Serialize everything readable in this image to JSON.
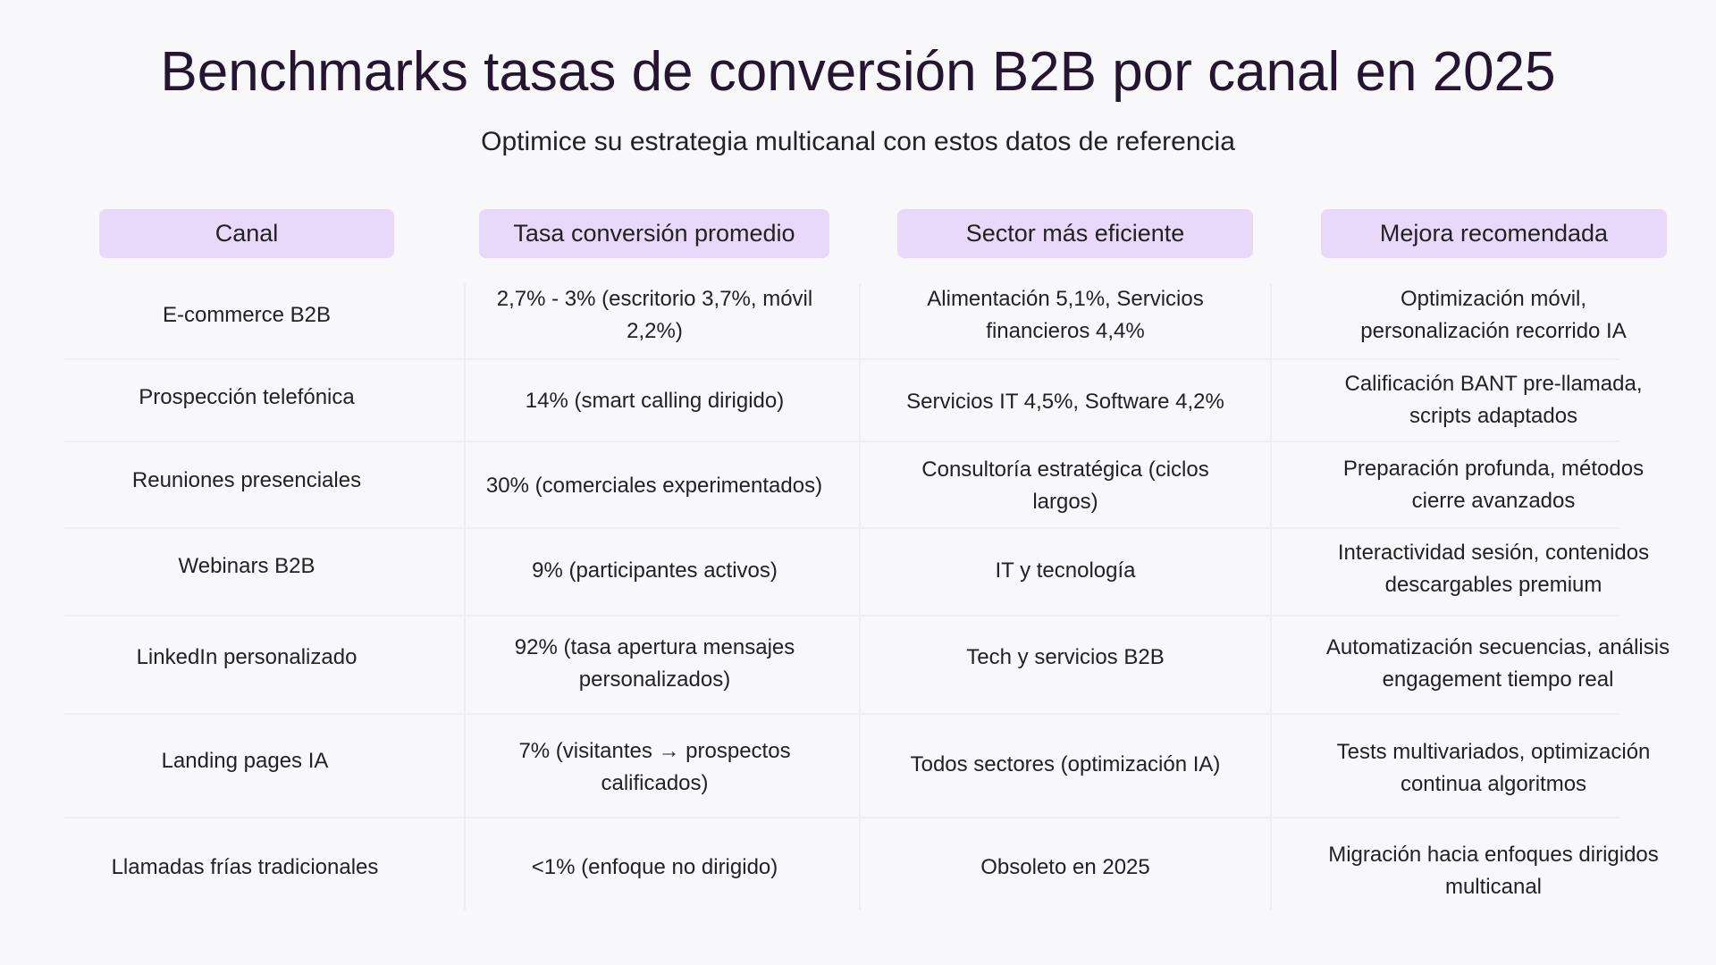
{
  "title": "Benchmarks tasas de conversión B2B por canal en 2025",
  "subtitle": "Optimice su estrategia multicanal con estos datos de referencia",
  "table": {
    "headers": [
      "Canal",
      "Tasa conversión promedio",
      "Sector más eficiente",
      "Mejora recomendada"
    ],
    "rows": [
      [
        "E-commerce B2B",
        "2,7% - 3% (escritorio 3,7%, móvil 2,2%)",
        "Alimentación 5,1%, Servicios financieros 4,4%",
        "Optimización móvil, personalización recorrido IA"
      ],
      [
        "Prospección telefónica",
        "14% (smart calling dirigido)",
        "Servicios IT 4,5%, Software 4,2%",
        "Calificación BANT pre-llamada, scripts adaptados"
      ],
      [
        "Reuniones presenciales",
        "30% (comerciales experimentados)",
        "Consultoría estratégica (ciclos largos)",
        "Preparación profunda, métodos cierre avanzados"
      ],
      [
        "Webinars B2B",
        "9% (participantes activos)",
        "IT y tecnología",
        "Interactividad sesión, contenidos descargables premium"
      ],
      [
        "LinkedIn personalizado",
        "92% (tasa apertura mensajes personalizados)",
        "Tech y servicios B2B",
        "Automatización secuencias, análisis engagement tiempo real"
      ],
      [
        "Landing pages IA",
        "7% (visitantes → prospectos calificados)",
        "Todos sectores (optimización IA)",
        "Tests multivariados, optimización continua algoritmos"
      ],
      [
        "Llamadas frías tradicionales",
        "<1% (enfoque no dirigido)",
        "Obsoleto en 2025",
        "Migración hacia enfoques dirigidos multicanal"
      ]
    ]
  }
}
